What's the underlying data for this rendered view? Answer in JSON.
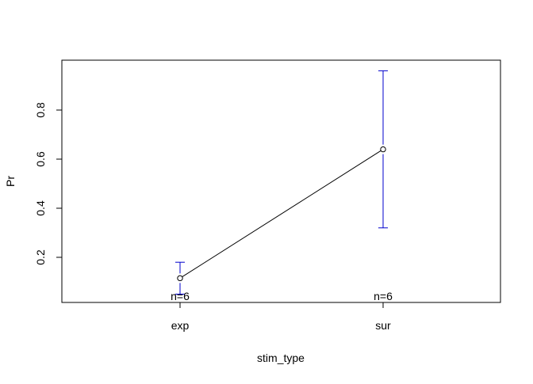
{
  "chart_data": {
    "type": "line",
    "title": "",
    "xlabel": "stim_type",
    "ylabel": "Pr",
    "categories": [
      "exp",
      "sur"
    ],
    "values": [
      0.115,
      0.64
    ],
    "error_bars": {
      "lower": [
        0.05,
        0.32
      ],
      "upper": [
        0.18,
        0.96
      ],
      "color": "#0000CC"
    },
    "counts": [
      "n=6",
      "n=6"
    ],
    "yticks": [
      "0.2",
      "0.4",
      "0.6",
      "0.8"
    ],
    "ylim": [
      0.02,
      1.0
    ],
    "grid": false,
    "legend": "none",
    "line_color": "#000000"
  }
}
